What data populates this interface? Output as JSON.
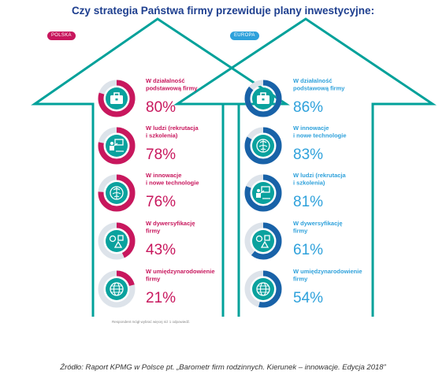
{
  "title": "Czy strategia Państwa firmy przewiduje plany inwestycyjne:",
  "note": "Respondent mógł wybrać więcej niż 1 odpowiedź.",
  "source": "Źródło: Raport KPMG w Polsce pt. „Barometr firm rodzinnych. Kierunek – innowacje. Edycja 2018”",
  "colors": {
    "polska_accent": "#c8175d",
    "europa_accent": "#2ea1db",
    "europa_ring": "#1862a8",
    "arrow_outline": "#00a19a",
    "ring_track": "#dde3ea",
    "icon_bg": "#0aa29e",
    "title": "#1e3f8f"
  },
  "chart_data": [
    {
      "type": "donut-list",
      "name": "POLSKA",
      "items": [
        {
          "label": [
            "W działalność",
            "podstawową firmy"
          ],
          "value": 80,
          "value_text": "80%",
          "icon": "briefcase-icon"
        },
        {
          "label": [
            "W ludzi (rekrutacja",
            "i szkolenia)"
          ],
          "value": 78,
          "value_text": "78%",
          "icon": "presenter-icon"
        },
        {
          "label": [
            "W innowacje",
            "i nowe technologie"
          ],
          "value": 76,
          "value_text": "76%",
          "icon": "brain-icon"
        },
        {
          "label": [
            "W dywersyfikację",
            "firmy"
          ],
          "value": 43,
          "value_text": "43%",
          "icon": "shapes-icon"
        },
        {
          "label": [
            "W umiędzynarodowienie",
            "firmy"
          ],
          "value": 21,
          "value_text": "21%",
          "icon": "globe-icon"
        }
      ]
    },
    {
      "type": "donut-list",
      "name": "EUROPA",
      "items": [
        {
          "label": [
            "W działalność",
            "podstawową firmy"
          ],
          "value": 86,
          "value_text": "86%",
          "icon": "briefcase-icon"
        },
        {
          "label": [
            "W innowacje",
            "i nowe technologie"
          ],
          "value": 83,
          "value_text": "83%",
          "icon": "brain-icon"
        },
        {
          "label": [
            "W ludzi (rekrutacja",
            "i szkolenia)"
          ],
          "value": 81,
          "value_text": "81%",
          "icon": "presenter-icon"
        },
        {
          "label": [
            "W dywersyfikację",
            "firmy"
          ],
          "value": 61,
          "value_text": "61%",
          "icon": "shapes-icon"
        },
        {
          "label": [
            "W umiędzynarodowienie",
            "firmy"
          ],
          "value": 54,
          "value_text": "54%",
          "icon": "globe-icon"
        }
      ]
    }
  ]
}
